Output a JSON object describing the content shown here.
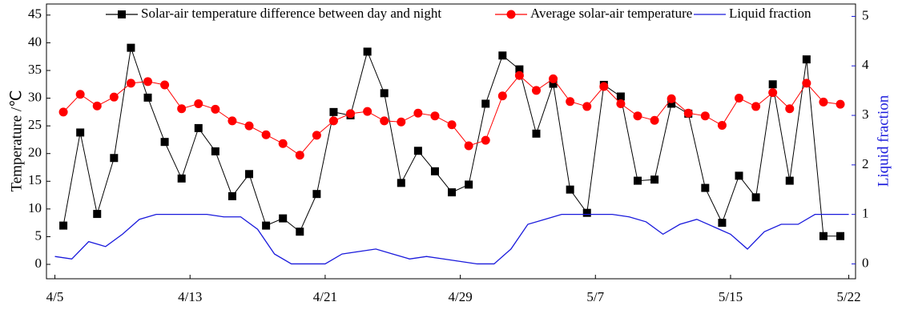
{
  "chart_data": {
    "type": "line",
    "ylabel": "Temperature /℃",
    "y2label": "Liquid fraction",
    "xlim": [
      -0.5,
      47.4
    ],
    "xticks": [
      {
        "value": 0,
        "label": "4/5"
      },
      {
        "value": 8,
        "label": "4/13"
      },
      {
        "value": 16,
        "label": "4/21"
      },
      {
        "value": 24,
        "label": "4/29"
      },
      {
        "value": 32,
        "label": "5/7"
      },
      {
        "value": 40,
        "label": "5/15"
      },
      {
        "value": 47,
        "label": "5/22"
      }
    ],
    "ylim": [
      -2.6,
      47
    ],
    "yticks": [
      0,
      5,
      10,
      15,
      20,
      25,
      30,
      35,
      40,
      45
    ],
    "y2lim": [
      -0.3,
      5.25
    ],
    "y2ticks": [
      0,
      1,
      2,
      3,
      4,
      5
    ],
    "y2color": "#1a1adc",
    "x": [
      0.5,
      1.5,
      2.5,
      3.5,
      4.5,
      5.5,
      6.5,
      7.5,
      8.5,
      9.5,
      10.5,
      11.5,
      12.5,
      13.5,
      14.5,
      15.5,
      16.5,
      17.5,
      18.5,
      19.5,
      20.5,
      21.5,
      22.5,
      23.5,
      24.5,
      25.5,
      26.5,
      27.5,
      28.5,
      29.5,
      30.5,
      31.5,
      32.5,
      33.5,
      34.5,
      35.5,
      36.5,
      37.5,
      38.5,
      39.5,
      40.5,
      41.5,
      42.5,
      43.5,
      44.5,
      45.5,
      46.5
    ],
    "series": [
      {
        "name": "Solar-air temperature difference between day and night",
        "color": "#000000",
        "marker": "square",
        "values": [
          7,
          23.8,
          9.1,
          19.2,
          39.1,
          30.1,
          22.1,
          15.5,
          24.6,
          20.4,
          12.3,
          16.3,
          7,
          8.3,
          5.9,
          12.7,
          27.5,
          26.9,
          38.4,
          30.9,
          14.7,
          20.5,
          16.8,
          13,
          14.4,
          29,
          37.7,
          35.2,
          23.6,
          32.6,
          13.5,
          9.3,
          32.4,
          30.3,
          15.1,
          15.3,
          29,
          27.2,
          13.8,
          7.5,
          16,
          12.1,
          32.5,
          15.1,
          37,
          5.1,
          5.1
        ]
      },
      {
        "name": "Average solar-air temperature",
        "color": "#ff0000",
        "marker": "circle",
        "values": [
          27.5,
          30.7,
          28.6,
          30.2,
          32.7,
          33,
          32.4,
          28.1,
          29,
          28,
          25.9,
          25,
          23.4,
          21.8,
          19.7,
          23.3,
          25.9,
          27.2,
          27.6,
          25.9,
          25.7,
          27.3,
          26.8,
          25.2,
          21.4,
          22.4,
          30.4,
          34.1,
          31.4,
          33.5,
          29.4,
          28.5,
          32.1,
          29,
          26.8,
          26,
          29.9,
          27.3,
          26.8,
          25.1,
          30,
          28.5,
          31,
          28.1,
          32.7,
          29.3,
          28.9
        ]
      },
      {
        "name": "Liquid fraction",
        "color": "#1a1adc",
        "marker": "none",
        "axis": "y2",
        "x": [
          0,
          1,
          2,
          3,
          4,
          5,
          6,
          7,
          8,
          9,
          10,
          11,
          12,
          13,
          14,
          15,
          16,
          17,
          18,
          19,
          20,
          21,
          22,
          23,
          24,
          25,
          26,
          27,
          28,
          29,
          30,
          31,
          32,
          33,
          34,
          35,
          36,
          37,
          38,
          39,
          40,
          41,
          42,
          43,
          44,
          45,
          46,
          47
        ],
        "values": [
          0.15,
          0.1,
          0.45,
          0.35,
          0.6,
          0.9,
          1,
          1,
          1,
          1,
          0.95,
          0.95,
          0.7,
          0.2,
          0,
          0,
          0,
          0.2,
          0.25,
          0.3,
          0.2,
          0.1,
          0.15,
          0.1,
          0.05,
          0,
          0,
          0.3,
          0.8,
          0.9,
          1,
          1,
          1,
          1,
          0.95,
          0.85,
          0.6,
          0.8,
          0.9,
          0.75,
          0.6,
          0.3,
          0.65,
          0.8,
          0.8,
          1,
          1,
          1
        ]
      }
    ]
  }
}
